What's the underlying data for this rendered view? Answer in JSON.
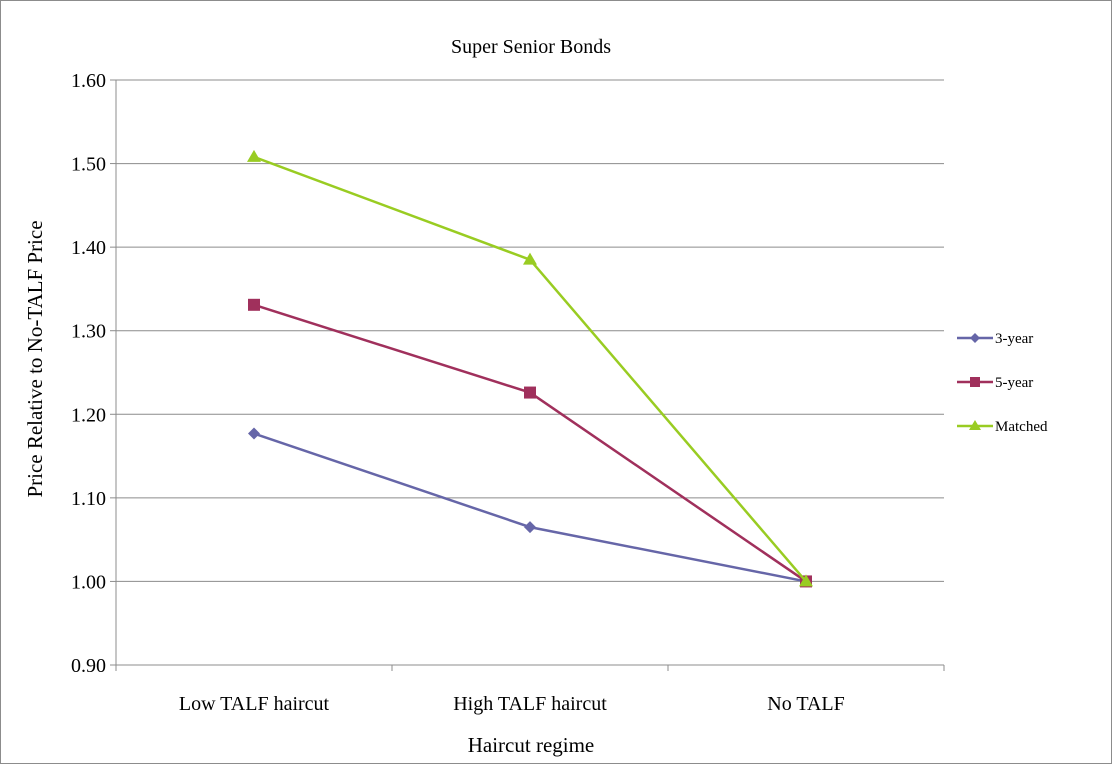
{
  "chart_data": {
    "type": "line",
    "title": "Super Senior Bonds",
    "xlabel": "Haircut regime",
    "ylabel": "Price Relative to No-TALF Price",
    "categories": [
      "Low TALF haircut",
      "High TALF haircut",
      "No TALF"
    ],
    "ylim": [
      0.9,
      1.6
    ],
    "yticks": [
      "0.90",
      "1.00",
      "1.10",
      "1.20",
      "1.30",
      "1.40",
      "1.50",
      "1.60"
    ],
    "grid": true,
    "legend": "right",
    "series": [
      {
        "name": "3-year",
        "values": [
          1.177,
          1.065,
          1.0
        ],
        "color": "#6666a8",
        "marker": "diamond"
      },
      {
        "name": "5-year",
        "values": [
          1.331,
          1.226,
          1.0
        ],
        "color": "#a0305c",
        "marker": "square"
      },
      {
        "name": "Matched",
        "values": [
          1.508,
          1.385,
          1.0
        ],
        "color": "#99cc22",
        "marker": "triangle"
      }
    ]
  }
}
